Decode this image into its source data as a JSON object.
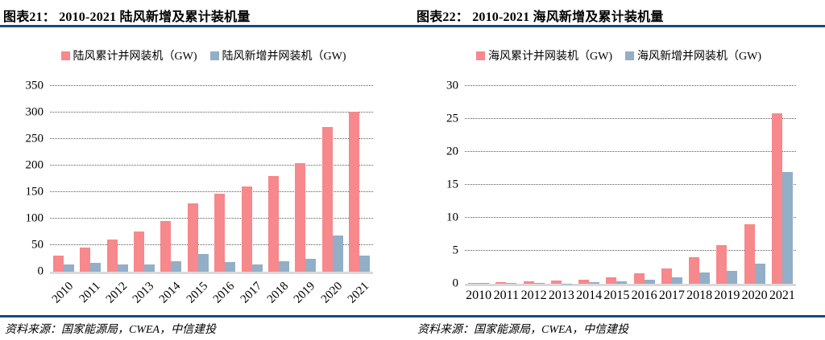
{
  "page": {
    "rule_color": "#17497D",
    "panels": [
      {
        "source": "资料来源：国家能源局，CWEA，中信建投"
      },
      {
        "source": "资料来源：国家能源局，CWEA，中信建投"
      }
    ]
  },
  "chart_data": [
    {
      "type": "bar",
      "title": "图表21： 2010-2021 陆风新增及累计装机量",
      "categories": [
        "2010",
        "2011",
        "2012",
        "2013",
        "2014",
        "2015",
        "2016",
        "2017",
        "2018",
        "2019",
        "2020",
        "2021"
      ],
      "series": [
        {
          "name": "陆风累计并网装机（GW)",
          "color": "#F7888B",
          "values": [
            31,
            46,
            61,
            76,
            96,
            129,
            147,
            161,
            180,
            204,
            272,
            302
          ]
        },
        {
          "name": "陆风新增并网装机（GW)",
          "color": "#92AFC7",
          "values": [
            14,
            16,
            14,
            14,
            20,
            33,
            18,
            14,
            19,
            24,
            68,
            30
          ]
        }
      ],
      "xlabel": "",
      "ylabel": "",
      "ylim": [
        0,
        350
      ],
      "ystep": 50,
      "grid": "horizontal-dotted",
      "legend_position": "top",
      "x_label_rotation": -45
    },
    {
      "type": "bar",
      "title": "图表22： 2010-2021 海风新增及累计装机量",
      "categories": [
        "2010",
        "2011",
        "2012",
        "2013",
        "2014",
        "2015",
        "2016",
        "2017",
        "2018",
        "2019",
        "2020",
        "2021"
      ],
      "series": [
        {
          "name": "海风累计并网装机（GW)",
          "color": "#F7888B",
          "values": [
            0.15,
            0.25,
            0.4,
            0.45,
            0.65,
            1.0,
            1.6,
            2.3,
            4.0,
            5.9,
            9.0,
            25.8
          ]
        },
        {
          "name": "海风新增并网装机（GW)",
          "color": "#92AFC7",
          "values": [
            0.1,
            0.1,
            0.15,
            0.05,
            0.2,
            0.35,
            0.6,
            0.95,
            1.65,
            2.0,
            3.1,
            16.9
          ]
        }
      ],
      "xlabel": "",
      "ylabel": "",
      "ylim": [
        0,
        30
      ],
      "ystep": 5,
      "grid": "horizontal-dotted",
      "legend_position": "top",
      "x_label_rotation": 0
    }
  ]
}
